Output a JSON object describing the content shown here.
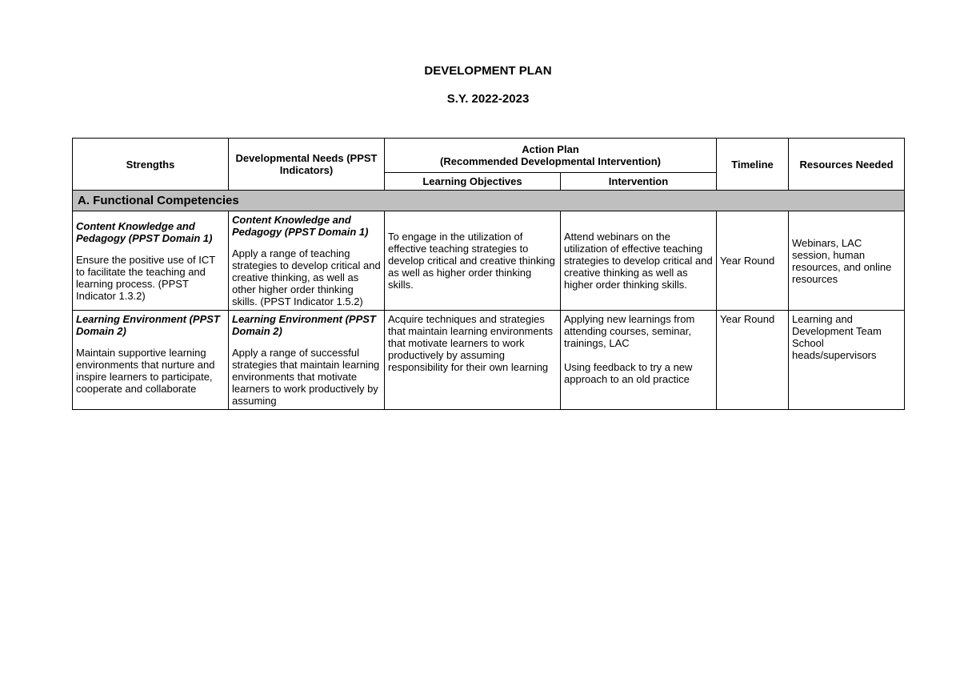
{
  "header": {
    "title": "DEVELOPMENT PLAN",
    "subtitle": "S.Y. 2022-2023"
  },
  "columns": {
    "strengths": "Strengths",
    "needs": "Developmental Needs (PPST Indicators)",
    "action_plan": "Action Plan\n(Recommended Developmental Intervention)",
    "learning_objectives": "Learning Objectives",
    "intervention": "Intervention",
    "timeline": "Timeline",
    "resources": "Resources Needed"
  },
  "section_a": "A. Functional Competencies",
  "rows": [
    {
      "strengths_title": "Content Knowledge and Pedagogy (PPST Domain 1)",
      "strengths_body": "Ensure the positive use of ICT to facilitate the teaching and\nlearning process. (PPST Indicator 1.3.2)",
      "needs_title": "Content Knowledge and Pedagogy (PPST Domain 1)",
      "needs_body": "Apply a range of teaching strategies to develop critical and creative thinking, as well as other higher order thinking skills. (PPST Indicator 1.5.2)",
      "objectives": "To engage in the utilization of effective teaching strategies to develop critical and creative thinking as well as higher order thinking skills.",
      "intervention": "Attend webinars on the utilization of effective teaching strategies to develop critical and creative thinking as well as higher order thinking skills.",
      "timeline": "Year Round",
      "resources": "Webinars, LAC session, human resources, and online resources"
    },
    {
      "strengths_title": "Learning Environment (PPST Domain 2)",
      "strengths_body": "Maintain supportive learning environments that nurture and inspire learners to participate, cooperate and collaborate",
      "needs_title": "Learning Environment (PPST Domain 2)",
      "needs_body": "Apply a range of successful strategies that maintain learning environments that motivate learners to work productively by assuming",
      "objectives": "Acquire techniques and strategies that maintain learning environments that motivate learners to work productively by assuming responsibility for their own learning",
      "intervention": "Applying new learnings from attending courses, seminar, trainings, LAC\n\nUsing feedback to try a new approach to an old practice",
      "timeline": "Year Round",
      "resources": "Learning and Development Team School heads/supervisors"
    }
  ]
}
